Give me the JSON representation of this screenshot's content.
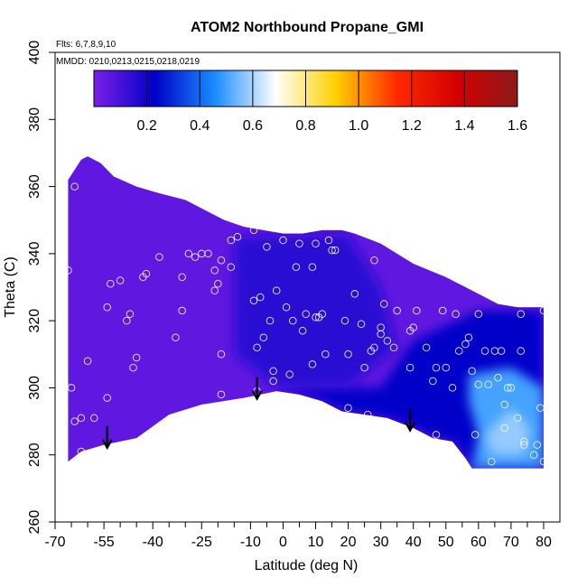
{
  "chart_data": {
    "type": "heatmap",
    "title": "ATOM2 Northbound Propane_GMI",
    "annotations": [
      "Flts: 6,7,8,9,10",
      "MMDD: 0210,0213,0215,0218,0219"
    ],
    "xlabel": "Latitude (deg N)",
    "ylabel": "Theta (C)",
    "xlim": [
      -70,
      85
    ],
    "ylim": [
      260,
      400
    ],
    "x_ticks_labeled": [
      -70,
      -55,
      -40,
      -25,
      -10,
      0,
      10,
      20,
      30,
      40,
      50,
      60,
      70,
      80
    ],
    "x_ticks_minor": [
      -65,
      -60,
      -50,
      -45,
      -35,
      -30,
      -20,
      -15,
      -5,
      5,
      15,
      25,
      35,
      45,
      55,
      65,
      75
    ],
    "y_ticks": [
      260,
      280,
      300,
      320,
      340,
      360,
      380,
      400
    ],
    "colorbar": {
      "min": 0.0,
      "max": 1.6,
      "ticks": [
        0.2,
        0.4,
        0.6,
        0.8,
        1.0,
        1.2,
        1.4,
        1.6
      ],
      "stops": [
        "#7b1fe8",
        "#0000c8",
        "#1a8cff",
        "#ffffff",
        "#ffd000",
        "#ff2a00",
        "#d40000",
        "#8b1a1a"
      ]
    },
    "field_top_boundary": [
      [
        -66,
        362
      ],
      [
        -64,
        365
      ],
      [
        -62,
        368
      ],
      [
        -60,
        369
      ],
      [
        -56,
        367
      ],
      [
        -52,
        363
      ],
      [
        -45,
        360
      ],
      [
        -38,
        358
      ],
      [
        -30,
        356
      ],
      [
        -24,
        353
      ],
      [
        -18,
        350
      ],
      [
        -12,
        348
      ],
      [
        -6,
        347
      ],
      [
        0,
        346
      ],
      [
        6,
        346
      ],
      [
        12,
        347
      ],
      [
        18,
        347
      ],
      [
        22,
        346
      ],
      [
        30,
        343
      ],
      [
        40,
        337
      ],
      [
        50,
        333
      ],
      [
        60,
        328
      ],
      [
        66,
        325
      ],
      [
        72,
        324
      ],
      [
        80,
        324
      ]
    ],
    "field_bottom_boundary": [
      [
        -66,
        278
      ],
      [
        -62,
        281
      ],
      [
        -55,
        283
      ],
      [
        -45,
        285
      ],
      [
        -35,
        292
      ],
      [
        -25,
        295
      ],
      [
        -12,
        297
      ],
      [
        -2,
        299
      ],
      [
        5,
        298
      ],
      [
        12,
        296
      ],
      [
        18,
        293
      ],
      [
        25,
        292
      ],
      [
        32,
        291
      ],
      [
        40,
        288
      ],
      [
        46,
        285
      ],
      [
        52,
        284
      ],
      [
        56,
        279
      ],
      [
        58,
        276
      ],
      [
        80,
        276
      ]
    ],
    "regions": [
      {
        "name": "background",
        "value": 0.05
      },
      {
        "name": "northern-lower",
        "value": 0.22,
        "polygon": [
          [
            -2,
            300
          ],
          [
            30,
            300
          ],
          [
            40,
            314
          ],
          [
            60,
            323
          ],
          [
            80,
            323
          ],
          [
            80,
            276
          ],
          [
            58,
            276
          ],
          [
            56,
            279
          ],
          [
            52,
            284
          ],
          [
            46,
            285
          ],
          [
            40,
            288
          ],
          [
            32,
            291
          ],
          [
            25,
            292
          ],
          [
            18,
            293
          ],
          [
            12,
            296
          ],
          [
            5,
            298
          ]
        ]
      },
      {
        "name": "central-mid",
        "value": 0.15,
        "polygon": [
          [
            -15,
            345
          ],
          [
            20,
            346
          ],
          [
            30,
            330
          ],
          [
            35,
            312
          ],
          [
            20,
            300
          ],
          [
            -2,
            300
          ],
          [
            -15,
            310
          ]
        ]
      },
      {
        "name": "northern-enhanced",
        "value": 0.5,
        "polygon": [
          [
            57,
            304
          ],
          [
            70,
            306
          ],
          [
            80,
            300
          ],
          [
            80,
            276
          ],
          [
            58,
            276
          ],
          [
            60,
            286
          ],
          [
            57,
            296
          ]
        ]
      },
      {
        "name": "enhanced-core",
        "value": 0.58,
        "polygon": [
          [
            62,
            286
          ],
          [
            70,
            294
          ],
          [
            76,
            288
          ],
          [
            74,
            280
          ],
          [
            64,
            280
          ]
        ]
      }
    ],
    "observations": [
      [
        -66,
        335
      ],
      [
        -64,
        360
      ],
      [
        -65,
        300
      ],
      [
        -64,
        290
      ],
      [
        -62,
        291
      ],
      [
        -62,
        281
      ],
      [
        -60,
        308
      ],
      [
        -58,
        291
      ],
      [
        -54,
        297
      ],
      [
        -54,
        324
      ],
      [
        -53,
        331
      ],
      [
        -50,
        332
      ],
      [
        -48,
        320
      ],
      [
        -47,
        322
      ],
      [
        -46,
        306
      ],
      [
        -45,
        309
      ],
      [
        -43,
        333
      ],
      [
        -42,
        334
      ],
      [
        -38,
        339
      ],
      [
        -33,
        315
      ],
      [
        -31,
        323
      ],
      [
        -31,
        333
      ],
      [
        -29,
        340
      ],
      [
        -27,
        339
      ],
      [
        -25,
        340
      ],
      [
        -23,
        340
      ],
      [
        -21,
        329
      ],
      [
        -21,
        335
      ],
      [
        -20,
        331
      ],
      [
        -19,
        310
      ],
      [
        -19,
        338
      ],
      [
        -19,
        298
      ],
      [
        -16,
        336
      ],
      [
        -16,
        344
      ],
      [
        -14,
        345
      ],
      [
        -9,
        347
      ],
      [
        -9,
        326
      ],
      [
        -8,
        312
      ],
      [
        -8,
        299
      ],
      [
        -7,
        327
      ],
      [
        -6,
        315
      ],
      [
        -5,
        342
      ],
      [
        -4,
        320
      ],
      [
        -3,
        305
      ],
      [
        -3,
        302
      ],
      [
        -2,
        329
      ],
      [
        0,
        344
      ],
      [
        1,
        324
      ],
      [
        2,
        304
      ],
      [
        3,
        320
      ],
      [
        4,
        336
      ],
      [
        5,
        343
      ],
      [
        6,
        317
      ],
      [
        7,
        322
      ],
      [
        9,
        307
      ],
      [
        9,
        336
      ],
      [
        10,
        343
      ],
      [
        10,
        321
      ],
      [
        11,
        321
      ],
      [
        12,
        322
      ],
      [
        13,
        310
      ],
      [
        14,
        344
      ],
      [
        15,
        341
      ],
      [
        16,
        341
      ],
      [
        19,
        320
      ],
      [
        20,
        310
      ],
      [
        20,
        294
      ],
      [
        22,
        328
      ],
      [
        24,
        319
      ],
      [
        25,
        306
      ],
      [
        26,
        292
      ],
      [
        27,
        311
      ],
      [
        28,
        312
      ],
      [
        28,
        338
      ],
      [
        30,
        318
      ],
      [
        30,
        316
      ],
      [
        31,
        325
      ],
      [
        32,
        314
      ],
      [
        34,
        312
      ],
      [
        35,
        323
      ],
      [
        39,
        317
      ],
      [
        39,
        306
      ],
      [
        40,
        318
      ],
      [
        41,
        323
      ],
      [
        44,
        312
      ],
      [
        46,
        302
      ],
      [
        47,
        286
      ],
      [
        47,
        306
      ],
      [
        49,
        323
      ],
      [
        50,
        306
      ],
      [
        52,
        300
      ],
      [
        53,
        322
      ],
      [
        54,
        311
      ],
      [
        56,
        313
      ],
      [
        57,
        315
      ],
      [
        58,
        305
      ],
      [
        59,
        286
      ],
      [
        60,
        322
      ],
      [
        60,
        301
      ],
      [
        62,
        311
      ],
      [
        63,
        301
      ],
      [
        64,
        278
      ],
      [
        65,
        311
      ],
      [
        66,
        303
      ],
      [
        67,
        311
      ],
      [
        68,
        295
      ],
      [
        68,
        288
      ],
      [
        69,
        300
      ],
      [
        70,
        300
      ],
      [
        72,
        291
      ],
      [
        73,
        311
      ],
      [
        73,
        322
      ],
      [
        74,
        284
      ],
      [
        74,
        283
      ],
      [
        77,
        280
      ],
      [
        78,
        283
      ],
      [
        79,
        294
      ],
      [
        80,
        323
      ],
      [
        80,
        278
      ]
    ],
    "arrows_latitude": [
      -54,
      -8,
      39
    ],
    "grid": false,
    "legend": "top"
  }
}
